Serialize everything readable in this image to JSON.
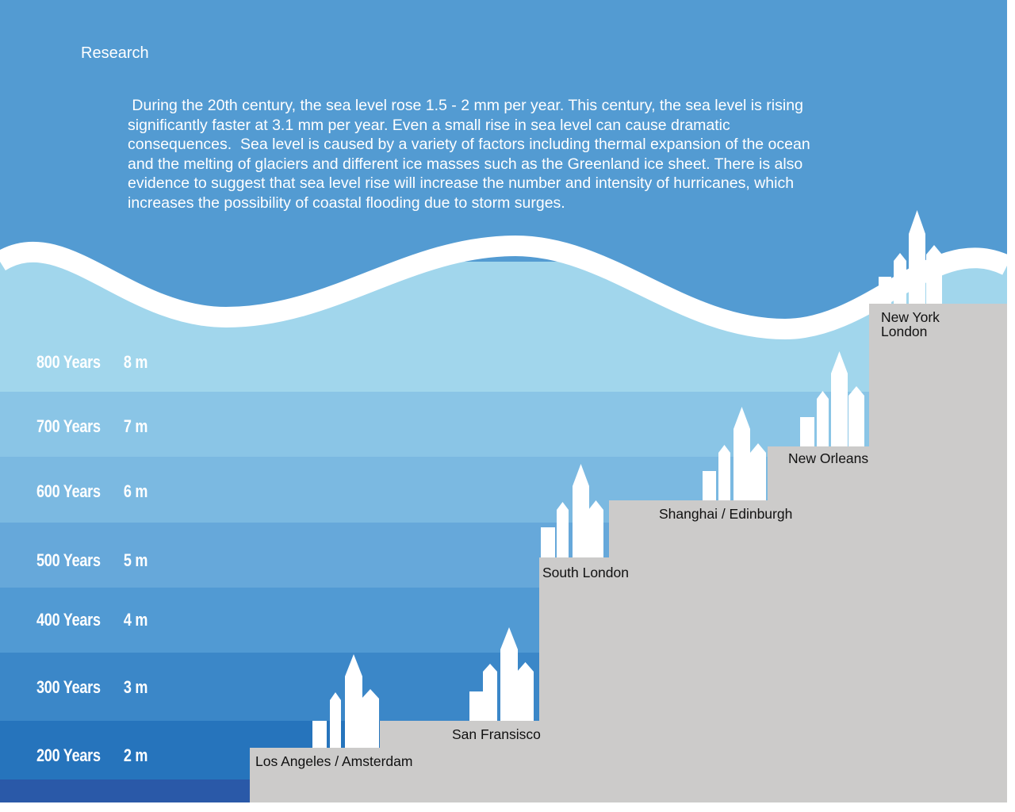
{
  "heading": "Research",
  "intro": " During the 20th century, the sea level rose 1.5 - 2 mm per year. This century, the sea level is rising significantly faster at 3.1 mm per year. Even a small rise in sea level can cause dramatic consequences.  Sea level is caused by a variety of factors including thermal expansion of the ocean and the melting of glaciers and different ice masses such as the Greenland ice sheet. There is also evidence to suggest that sea level rise will increase the number and intensity of hurricanes, which increases the possibility of coastal flooding due to storm surges.",
  "levels": [
    {
      "years": "800 Years",
      "rise": "8 m"
    },
    {
      "years": "700 Years",
      "rise": "7 m"
    },
    {
      "years": "600 Years",
      "rise": "6 m"
    },
    {
      "years": "500 Years",
      "rise": "5 m"
    },
    {
      "years": "400 Years",
      "rise": "4 m"
    },
    {
      "years": "300 Years",
      "rise": "3 m"
    },
    {
      "years": "200 Years",
      "rise": "2 m"
    }
  ],
  "cities": [
    {
      "name": "Los Angeles / Amsterdam",
      "level_m": 2
    },
    {
      "name": "San Fransisco",
      "level_m": 3
    },
    {
      "name": "South London",
      "level_m": 5
    },
    {
      "name": "Shanghai / Edinburgh",
      "level_m": 6
    },
    {
      "name": "New Orleans",
      "level_m": 7
    },
    {
      "name": "New York\nLondon",
      "level_m": 8
    }
  ],
  "colors": {
    "sky": "#539bd2",
    "wave": "#ffffff",
    "band_8m": "#a1d6ec",
    "band_7m": "#8ac5e6",
    "band_6m": "#7bb9e1",
    "band_5m": "#66a8da",
    "band_4m": "#519ad3",
    "band_3m": "#3b87c8",
    "band_2m": "#2674bc",
    "band_base": "#2a59a8",
    "land": "#cccbca",
    "skyline": "#ffffff"
  }
}
